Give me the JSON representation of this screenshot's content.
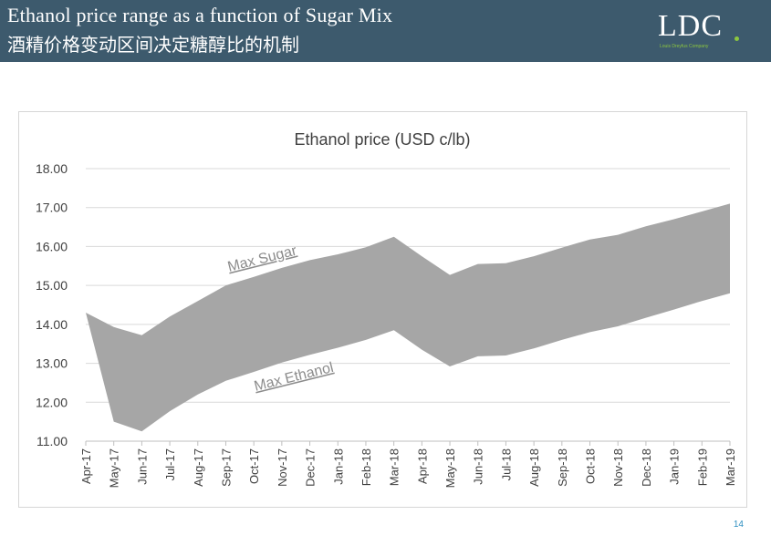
{
  "header": {
    "title_en": "Ethanol price range as a function of Sugar Mix",
    "title_cn": "酒精价格变动区间决定糖醇比的机制",
    "logo_text": "LDC",
    "logo_sub": "Louis Dreyfus Company"
  },
  "page_number": "14",
  "colors": {
    "header_bg": "#3d5a6d",
    "band_fill": "#a6a6a6",
    "logo_green": "#8cc63f",
    "page_number": "#2e8fc1"
  },
  "chart_data": {
    "type": "area",
    "title": "Ethanol price (USD c/lb)",
    "xlabel": "",
    "ylabel": "",
    "ylim": [
      11.0,
      18.0
    ],
    "y_ticks": [
      "11.00",
      "12.00",
      "13.00",
      "14.00",
      "15.00",
      "16.00",
      "17.00",
      "18.00"
    ],
    "grid": true,
    "categories": [
      "Apr-17",
      "May-17",
      "Jun-17",
      "Jul-17",
      "Aug-17",
      "Sep-17",
      "Oct-17",
      "Nov-17",
      "Dec-17",
      "Jan-18",
      "Feb-18",
      "Mar-18",
      "Apr-18",
      "May-18",
      "Jun-18",
      "Jul-18",
      "Aug-18",
      "Sep-18",
      "Oct-18",
      "Nov-18",
      "Dec-18",
      "Jan-19",
      "Feb-19",
      "Mar-19"
    ],
    "series": [
      {
        "name": "Max Sugar",
        "values": [
          14.3,
          13.93,
          13.72,
          14.2,
          14.6,
          15.0,
          15.22,
          15.45,
          15.65,
          15.8,
          15.98,
          16.25,
          15.75,
          15.27,
          15.55,
          15.57,
          15.75,
          15.97,
          16.18,
          16.3,
          16.52,
          16.7,
          16.9,
          17.1
        ]
      },
      {
        "name": "Max Ethanol",
        "values": [
          14.3,
          11.5,
          11.25,
          11.77,
          12.2,
          12.55,
          12.78,
          13.02,
          13.22,
          13.4,
          13.6,
          13.85,
          13.35,
          12.92,
          13.18,
          13.2,
          13.38,
          13.6,
          13.8,
          13.95,
          14.17,
          14.38,
          14.6,
          14.8
        ]
      }
    ],
    "annotations": [
      "Max Sugar",
      "Max Ethanol"
    ]
  }
}
